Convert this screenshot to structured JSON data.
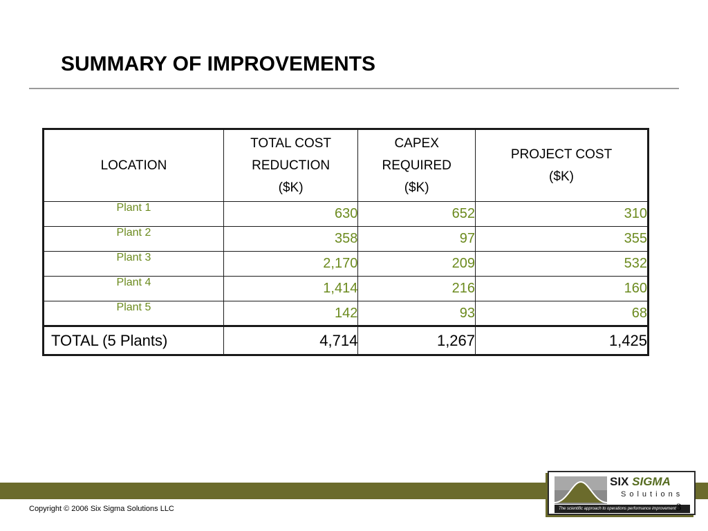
{
  "title": "SUMMARY OF IMPROVEMENTS",
  "table": {
    "headers": [
      [
        "LOCATION"
      ],
      [
        "TOTAL COST",
        "REDUCTION",
        "($K)"
      ],
      [
        "CAPEX",
        "REQUIRED",
        "($K)"
      ],
      [
        "PROJECT COST",
        "($K)"
      ]
    ],
    "rows": [
      {
        "location": "Plant 1",
        "total_cost_reduction": "630",
        "capex_required": "652",
        "project_cost": "310"
      },
      {
        "location": "Plant 2",
        "total_cost_reduction": "358",
        "capex_required": "97",
        "project_cost": "355"
      },
      {
        "location": "Plant 3",
        "total_cost_reduction": "2,170",
        "capex_required": "209",
        "project_cost": "532"
      },
      {
        "location": "Plant 4",
        "total_cost_reduction": "1,414",
        "capex_required": "216",
        "project_cost": "160"
      },
      {
        "location": "Plant 5",
        "total_cost_reduction": "142",
        "capex_required": "93",
        "project_cost": "68"
      }
    ],
    "total": {
      "location": "TOTAL (5 Plants)",
      "total_cost_reduction": "4,714",
      "capex_required": "1,267",
      "project_cost": "1,425"
    }
  },
  "footer": {
    "copyright": "Copyright © 2006 Six Sigma Solutions LLC",
    "page_number": "3"
  },
  "logo": {
    "six": "SIX",
    "sigma": "SIGMA",
    "solutions": "Solutions",
    "tagline": "The scientific approach to operations performance improvement"
  },
  "colors": {
    "accent_green": "#6b8a1e",
    "footer_band": "#6b6b2c"
  }
}
